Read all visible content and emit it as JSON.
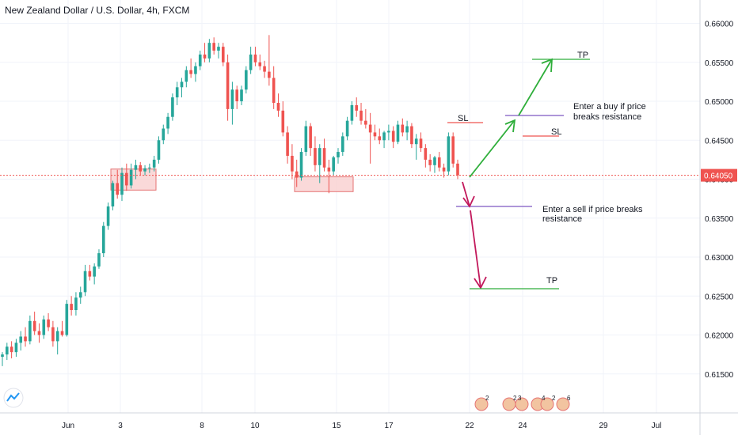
{
  "header": {
    "title": "New Zealand Dollar / U.S. Dollar, 4h, FXCM"
  },
  "colors": {
    "up": "#26a69a",
    "down": "#ef5350",
    "grid": "#f0f3fa",
    "axis_text": "#131722",
    "price_line": "#ef5350",
    "green_arrow": "#2eae3a",
    "red_arrow": "#c2185b",
    "purple_line": "#7e57c2",
    "zone_fill": "#f8c9c9",
    "zone_stroke": "#e57373"
  },
  "chart_data": {
    "type": "candlestick",
    "yticks": [
      "0.66000",
      "0.65500",
      "0.65000",
      "0.64500",
      "0.64000",
      "0.63500",
      "0.63000",
      "0.62500",
      "0.62000",
      "0.61500"
    ],
    "ylim": [
      0.61,
      0.663
    ],
    "xticks": [
      "Jun",
      "3",
      "8",
      "10",
      "15",
      "17",
      "22",
      "24",
      "29",
      "Jul"
    ],
    "last_price": "0.64050",
    "candles": [
      [
        0.6172,
        0.6178,
        0.616,
        0.6175
      ],
      [
        0.6175,
        0.619,
        0.6168,
        0.6185
      ],
      [
        0.6185,
        0.6192,
        0.617,
        0.6178
      ],
      [
        0.6178,
        0.6195,
        0.6172,
        0.619
      ],
      [
        0.619,
        0.6205,
        0.618,
        0.6198
      ],
      [
        0.6198,
        0.621,
        0.6185,
        0.6192
      ],
      [
        0.6192,
        0.6225,
        0.6188,
        0.6218
      ],
      [
        0.6218,
        0.623,
        0.62,
        0.6205
      ],
      [
        0.6205,
        0.6215,
        0.619,
        0.62
      ],
      [
        0.62,
        0.6225,
        0.6195,
        0.622
      ],
      [
        0.622,
        0.6228,
        0.6205,
        0.621
      ],
      [
        0.621,
        0.6218,
        0.6185,
        0.6192
      ],
      [
        0.6192,
        0.621,
        0.6175,
        0.6205
      ],
      [
        0.6205,
        0.6218,
        0.6198,
        0.62
      ],
      [
        0.62,
        0.6245,
        0.6198,
        0.624
      ],
      [
        0.624,
        0.625,
        0.6225,
        0.6232
      ],
      [
        0.6232,
        0.6255,
        0.6225,
        0.6248
      ],
      [
        0.6248,
        0.6262,
        0.624,
        0.6255
      ],
      [
        0.6255,
        0.629,
        0.625,
        0.6282
      ],
      [
        0.6282,
        0.629,
        0.627,
        0.6275
      ],
      [
        0.6275,
        0.6292,
        0.6265,
        0.6288
      ],
      [
        0.6288,
        0.631,
        0.6285,
        0.6305
      ],
      [
        0.6305,
        0.6345,
        0.63,
        0.634
      ],
      [
        0.634,
        0.637,
        0.6335,
        0.6365
      ],
      [
        0.6365,
        0.6398,
        0.636,
        0.6395
      ],
      [
        0.6395,
        0.6412,
        0.6375,
        0.638
      ],
      [
        0.638,
        0.6415,
        0.6372,
        0.6408
      ],
      [
        0.6408,
        0.642,
        0.6385,
        0.6392
      ],
      [
        0.6392,
        0.642,
        0.6388,
        0.6412
      ],
      [
        0.6412,
        0.6425,
        0.64,
        0.6418
      ],
      [
        0.6418,
        0.6422,
        0.6405,
        0.641
      ],
      [
        0.641,
        0.6418,
        0.6405,
        0.6414
      ],
      [
        0.6414,
        0.642,
        0.6408,
        0.6415
      ],
      [
        0.6415,
        0.643,
        0.641,
        0.6425
      ],
      [
        0.6425,
        0.6455,
        0.642,
        0.645
      ],
      [
        0.645,
        0.647,
        0.6445,
        0.6465
      ],
      [
        0.6465,
        0.6485,
        0.6458,
        0.648
      ],
      [
        0.648,
        0.651,
        0.6475,
        0.6505
      ],
      [
        0.6505,
        0.6525,
        0.6495,
        0.6518
      ],
      [
        0.6518,
        0.653,
        0.6505,
        0.6525
      ],
      [
        0.6525,
        0.6545,
        0.6518,
        0.654
      ],
      [
        0.654,
        0.6555,
        0.653,
        0.6535
      ],
      [
        0.6535,
        0.655,
        0.6525,
        0.6545
      ],
      [
        0.6545,
        0.6565,
        0.654,
        0.656
      ],
      [
        0.656,
        0.6575,
        0.655,
        0.6555
      ],
      [
        0.6555,
        0.658,
        0.655,
        0.6575
      ],
      [
        0.6575,
        0.6582,
        0.656,
        0.6565
      ],
      [
        0.6565,
        0.6575,
        0.6555,
        0.657
      ],
      [
        0.657,
        0.6575,
        0.6545,
        0.655
      ],
      [
        0.655,
        0.656,
        0.6475,
        0.649
      ],
      [
        0.649,
        0.6525,
        0.647,
        0.6515
      ],
      [
        0.6515,
        0.652,
        0.649,
        0.65
      ],
      [
        0.65,
        0.652,
        0.6495,
        0.6515
      ],
      [
        0.6515,
        0.6545,
        0.651,
        0.654
      ],
      [
        0.654,
        0.657,
        0.6535,
        0.656
      ],
      [
        0.656,
        0.657,
        0.6545,
        0.655
      ],
      [
        0.655,
        0.656,
        0.654,
        0.6545
      ],
      [
        0.6545,
        0.6552,
        0.653,
        0.6538
      ],
      [
        0.6538,
        0.6585,
        0.652,
        0.653
      ],
      [
        0.653,
        0.6545,
        0.649,
        0.6498
      ],
      [
        0.6498,
        0.651,
        0.648,
        0.6488
      ],
      [
        0.6488,
        0.65,
        0.6455,
        0.646
      ],
      [
        0.646,
        0.6468,
        0.642,
        0.643
      ],
      [
        0.643,
        0.6445,
        0.64,
        0.641
      ],
      [
        0.641,
        0.6425,
        0.639,
        0.6402
      ],
      [
        0.6402,
        0.644,
        0.6398,
        0.6435
      ],
      [
        0.6435,
        0.6475,
        0.643,
        0.6468
      ],
      [
        0.6468,
        0.6472,
        0.643,
        0.644
      ],
      [
        0.644,
        0.6455,
        0.641,
        0.6418
      ],
      [
        0.6418,
        0.6445,
        0.6395,
        0.644
      ],
      [
        0.644,
        0.6452,
        0.641,
        0.6415
      ],
      [
        0.6415,
        0.6425,
        0.6382,
        0.641
      ],
      [
        0.641,
        0.643,
        0.6405,
        0.6428
      ],
      [
        0.6428,
        0.644,
        0.642,
        0.6435
      ],
      [
        0.6435,
        0.646,
        0.643,
        0.6455
      ],
      [
        0.6455,
        0.648,
        0.645,
        0.6475
      ],
      [
        0.6475,
        0.65,
        0.647,
        0.6495
      ],
      [
        0.6495,
        0.6505,
        0.648,
        0.6488
      ],
      [
        0.6488,
        0.6498,
        0.647,
        0.6475
      ],
      [
        0.6475,
        0.649,
        0.6465,
        0.647
      ],
      [
        0.647,
        0.6485,
        0.642,
        0.646
      ],
      [
        0.646,
        0.647,
        0.645,
        0.6455
      ],
      [
        0.6455,
        0.6465,
        0.6445,
        0.645
      ],
      [
        0.645,
        0.6462,
        0.644,
        0.646
      ],
      [
        0.646,
        0.647,
        0.645,
        0.6462
      ],
      [
        0.6462,
        0.6468,
        0.644,
        0.6448
      ],
      [
        0.6448,
        0.6475,
        0.6445,
        0.647
      ],
      [
        0.647,
        0.6478,
        0.6455,
        0.646
      ],
      [
        0.646,
        0.6475,
        0.645,
        0.6468
      ],
      [
        0.6468,
        0.6472,
        0.644,
        0.6445
      ],
      [
        0.6445,
        0.6458,
        0.6425,
        0.6452
      ],
      [
        0.6452,
        0.646,
        0.6435,
        0.644
      ],
      [
        0.644,
        0.6445,
        0.6415,
        0.6425
      ],
      [
        0.6425,
        0.6432,
        0.641,
        0.6418
      ],
      [
        0.6418,
        0.643,
        0.6408,
        0.6428
      ],
      [
        0.6428,
        0.6435,
        0.641,
        0.6415
      ],
      [
        0.6415,
        0.642,
        0.6402,
        0.641
      ],
      [
        0.641,
        0.646,
        0.6405,
        0.6455
      ],
      [
        0.6455,
        0.646,
        0.6415,
        0.642
      ],
      [
        0.642,
        0.6425,
        0.64,
        0.6405
      ]
    ],
    "annotations": {
      "sl_top": "SL",
      "sl_mid": "SL",
      "tp_top": "TP",
      "tp_bottom": "TP",
      "buy_text_1": "Enter a buy if price",
      "buy_text_2": "breaks resistance",
      "sell_text_1": "Enter a sell if price breaks",
      "sell_text_2": "resistance"
    }
  },
  "event_badges": [
    "2",
    "2",
    "3",
    "",
    "4",
    "2",
    "",
    "6"
  ]
}
